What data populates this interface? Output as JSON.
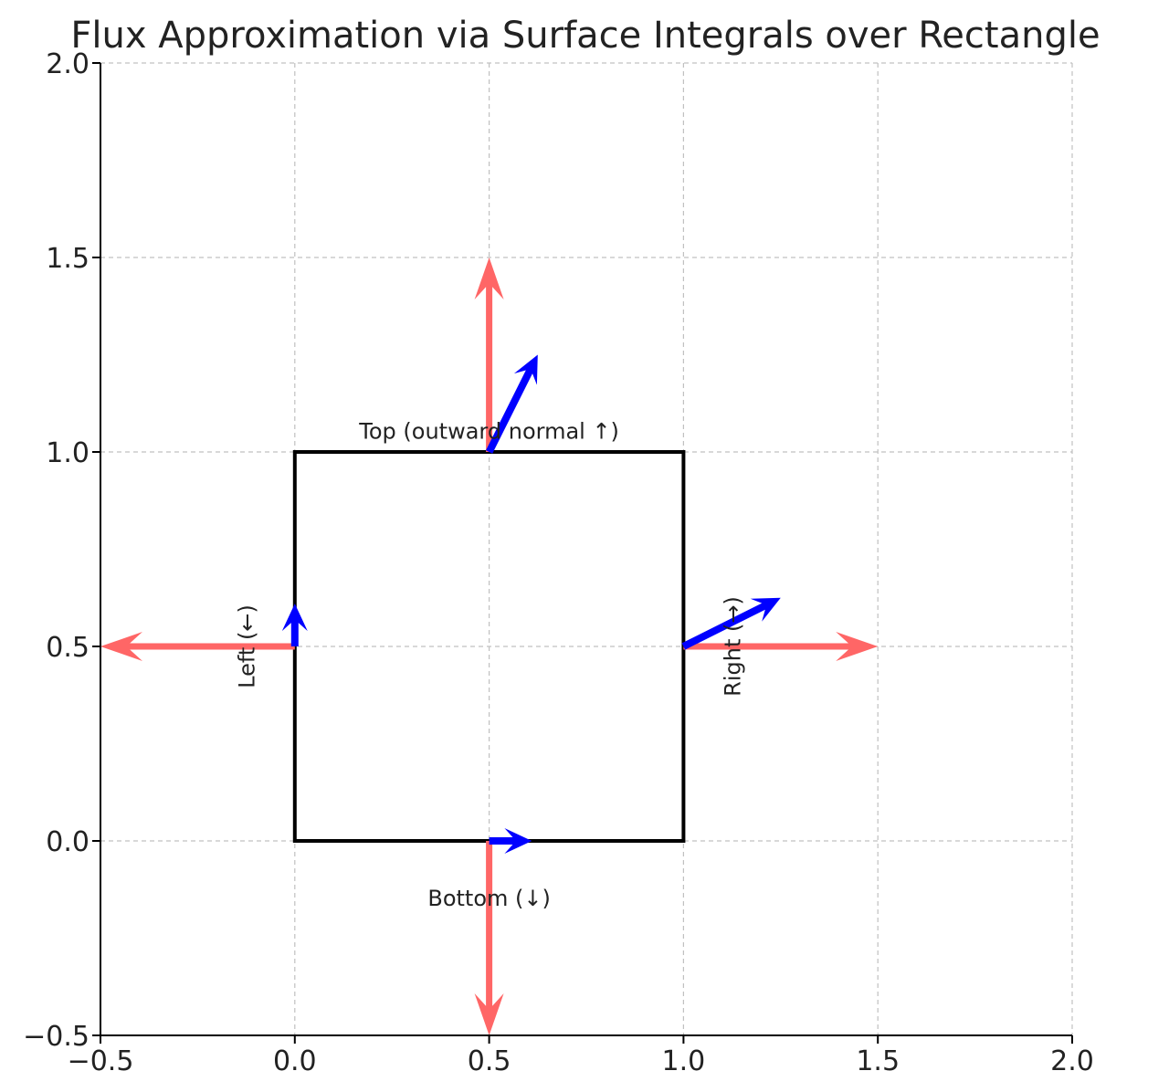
{
  "chart_data": {
    "type": "quiver",
    "title": "Flux Approximation via Surface Integrals over Rectangle",
    "xlabel": "",
    "ylabel": "",
    "xlim": [
      -0.5,
      2.0
    ],
    "ylim": [
      -0.5,
      2.0
    ],
    "xticks": [
      "−0.5",
      "0.0",
      "0.5",
      "1.0",
      "1.5",
      "2.0"
    ],
    "yticks": [
      "−0.5",
      "0.0",
      "0.5",
      "1.0",
      "1.5",
      "2.0"
    ],
    "xtick_values": [
      -0.5,
      0.0,
      0.5,
      1.0,
      1.5,
      2.0
    ],
    "ytick_values": [
      -0.5,
      0.0,
      0.5,
      1.0,
      1.5,
      2.0
    ],
    "grid": true,
    "rectangle": {
      "x": [
        0,
        1
      ],
      "y": [
        0,
        1
      ]
    },
    "normal_vectors": [
      {
        "name": "top-normal",
        "x": 0.5,
        "y": 1.0,
        "dx": 0.0,
        "dy": 0.5
      },
      {
        "name": "bottom-normal",
        "x": 0.5,
        "y": 0.0,
        "dx": 0.0,
        "dy": -0.5
      },
      {
        "name": "left-normal",
        "x": 0.0,
        "y": 0.5,
        "dx": -0.5,
        "dy": 0.0
      },
      {
        "name": "right-normal",
        "x": 1.0,
        "y": 0.5,
        "dx": 0.5,
        "dy": 0.0
      }
    ],
    "field_vectors": [
      {
        "name": "top-field",
        "x": 0.5,
        "y": 1.0,
        "dx": 0.125,
        "dy": 0.25
      },
      {
        "name": "bottom-field",
        "x": 0.5,
        "y": 0.0,
        "dx": 0.11,
        "dy": 0.0
      },
      {
        "name": "left-field",
        "x": 0.0,
        "y": 0.5,
        "dx": 0.0,
        "dy": 0.11
      },
      {
        "name": "right-field",
        "x": 1.0,
        "y": 0.5,
        "dx": 0.25,
        "dy": 0.125
      }
    ],
    "annotations": [
      {
        "name": "top-label",
        "text": "Top (outward normal ↑)",
        "x": 0.5,
        "y": 1.05,
        "rotate": 0
      },
      {
        "name": "bottom-label",
        "text": "Bottom (↓)",
        "x": 0.5,
        "y": -0.15,
        "rotate": 0
      },
      {
        "name": "left-label",
        "text": "Left (←)",
        "x": -0.12,
        "y": 0.5,
        "rotate": -90
      },
      {
        "name": "right-label",
        "text": "Right (→)",
        "x": 1.13,
        "y": 0.5,
        "rotate": -90
      }
    ],
    "colors": {
      "normal": "#ff6666",
      "field": "#0000ff",
      "rectangle": "#000000",
      "grid": "#c0c0c0"
    }
  }
}
